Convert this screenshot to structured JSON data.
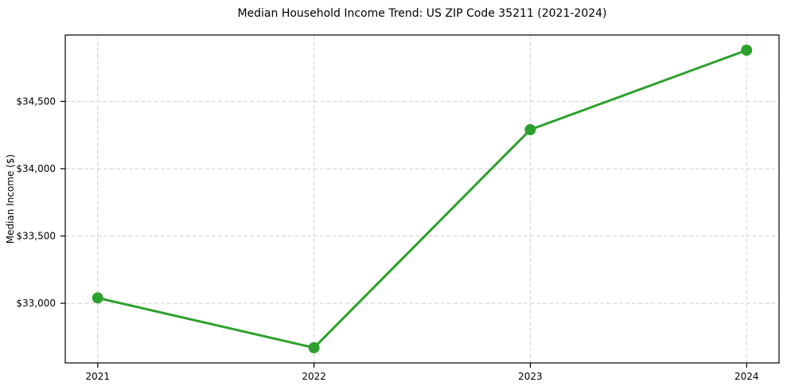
{
  "chart_data": {
    "type": "line",
    "title": "Median Household Income Trend: US ZIP Code 35211 (2021-2024)",
    "xlabel": "",
    "ylabel": "Median Income ($)",
    "x": [
      2021,
      2022,
      2023,
      2024
    ],
    "series": [
      {
        "name": "Median Household Income",
        "values": [
          33040,
          32670,
          34290,
          34880
        ]
      }
    ],
    "xticks": [
      2021,
      2022,
      2023,
      2024
    ],
    "xtick_labels": [
      "2021",
      "2022",
      "2023",
      "2024"
    ],
    "yticks": [
      33000,
      33500,
      34000,
      34500
    ],
    "ytick_labels": [
      "$33,000",
      "$33,500",
      "$34,000",
      "$34,500"
    ],
    "xlim": [
      2020.85,
      2024.15
    ],
    "ylim": [
      32557,
      34993
    ],
    "grid": true,
    "grid_style": "dashed",
    "legend_position": "none",
    "colors": {
      "line": "#2ca02c",
      "marker": "#2ca02c",
      "grid": "#d0d0d0",
      "spine": "#000000",
      "text": "#000000",
      "background": "#ffffff"
    },
    "line_width": 3,
    "marker_radius": 7
  }
}
